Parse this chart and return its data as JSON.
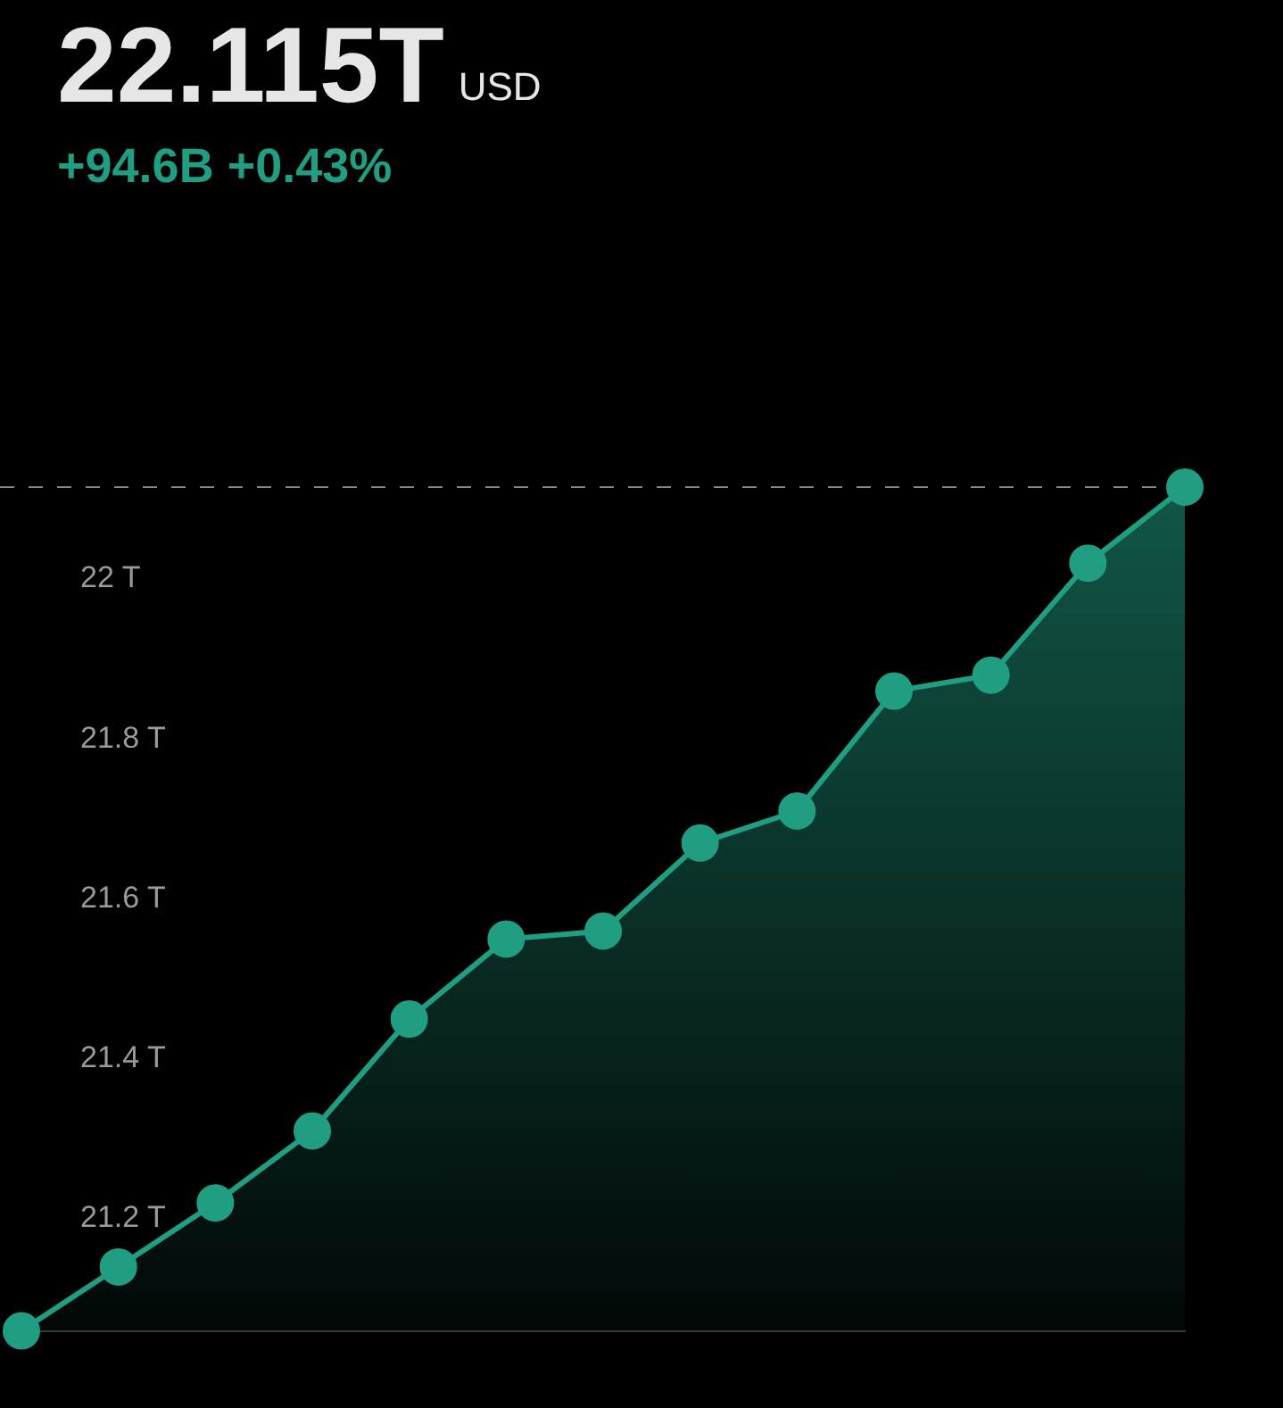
{
  "chart_data": {
    "type": "area",
    "title": "22.115T",
    "subtitle": "+94.6B +0.43%",
    "annotations": [
      "USD"
    ],
    "categories": [
      null,
      null,
      null,
      null,
      null,
      null,
      null,
      null,
      null,
      null,
      null,
      null,
      null
    ],
    "series": [
      {
        "color": "#1f9e82",
        "values": [
          21.06,
          21.14,
          21.22,
          21.31,
          21.45,
          21.55,
          21.56,
          21.67,
          21.71,
          21.86,
          21.88,
          22.02,
          22.115
        ]
      }
    ],
    "ylim": [
      21.06,
      22.115
    ],
    "yticks": [
      {
        "value": 21.2,
        "label": "21.2 T"
      },
      {
        "value": 21.4,
        "label": "21.4 T"
      },
      {
        "value": 21.6,
        "label": "21.6 T"
      },
      {
        "value": 21.8,
        "label": "21.8 T"
      },
      {
        "value": 22,
        "label": "22 T"
      }
    ],
    "ref_lines": [
      {
        "axis": "y",
        "value": 22.115,
        "color": "#8a8a8a",
        "line_style": "dashed"
      }
    ],
    "grid": false,
    "legend": false,
    "tick_labels": "y",
    "marker": "circle",
    "line_style": "solid"
  }
}
